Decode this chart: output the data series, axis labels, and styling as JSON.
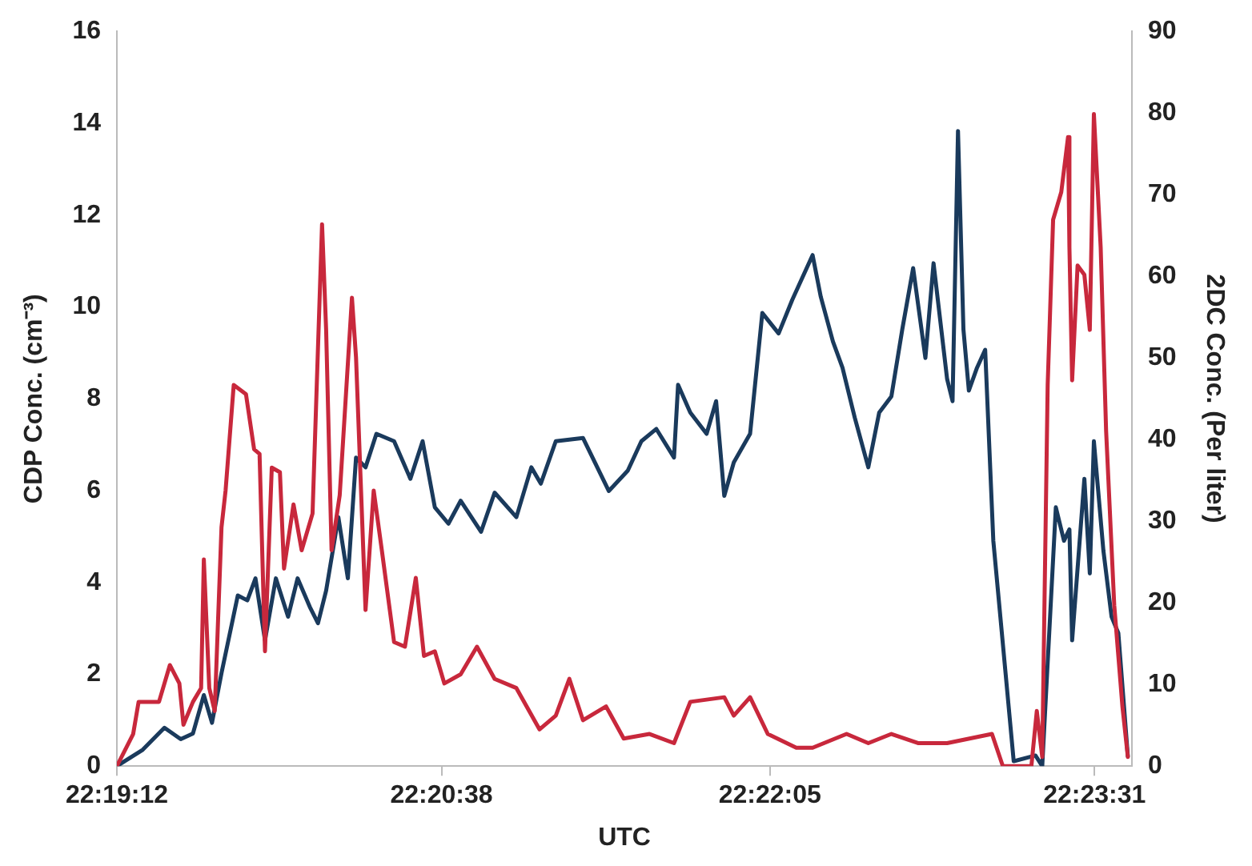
{
  "chart_data": {
    "type": "line",
    "xlabel": "UTC",
    "ylabel": "CDP Conc. (cm⁻³)",
    "y2label": "2DC Conc. (Per liter)",
    "xlim": [
      22.32,
      22.3947
    ],
    "xticks": [
      {
        "value": 22.32,
        "label": "22:19:12"
      },
      {
        "value": 22.343889,
        "label": "22:20:38"
      },
      {
        "value": 22.368056,
        "label": "22:22:05"
      },
      {
        "value": 22.391944,
        "label": "22:23:31"
      }
    ],
    "ylim": [
      0,
      16
    ],
    "yticks": [
      0,
      2,
      4,
      6,
      8,
      10,
      12,
      14,
      16
    ],
    "y2lim": [
      0,
      90
    ],
    "y2ticks": [
      0,
      10,
      20,
      30,
      40,
      50,
      60,
      70,
      80,
      90
    ],
    "grid": false,
    "legend": false,
    "marker": "none",
    "line_style": "solid",
    "series": [
      {
        "color": "#c8283c",
        "x": [
          22.32,
          22.3212,
          22.3216,
          22.3231,
          22.3239,
          22.3246,
          22.3249,
          22.3256,
          22.3262,
          22.3264,
          22.3268,
          22.3272,
          22.3277,
          22.328,
          22.3286,
          22.3295,
          22.3301,
          22.3305,
          22.3309,
          22.3314,
          22.332,
          22.3323,
          22.333,
          22.3336,
          22.3344,
          22.3351,
          22.3354,
          22.3358,
          22.3364,
          22.3373,
          22.3376,
          22.3383,
          22.3389,
          22.3395,
          22.3404,
          22.3412,
          22.342,
          22.3426,
          22.3434,
          22.3441,
          22.3453,
          22.3465,
          22.3478,
          22.3494,
          22.3511,
          22.3523,
          22.3533,
          22.3543,
          22.356,
          22.3573,
          22.3592,
          22.361,
          22.3622,
          22.3647,
          22.3654,
          22.3666,
          22.3679,
          22.37,
          22.3712,
          22.3737,
          22.3753,
          22.377,
          22.379,
          22.3811,
          22.3844,
          22.3852,
          22.3873,
          22.3877,
          22.3881,
          22.3885,
          22.3889,
          22.3895,
          22.39,
          22.3901,
          22.3903,
          22.3907,
          22.3912,
          22.3916,
          22.3919,
          22.3924,
          22.3928,
          22.3934,
          22.394,
          22.3944
        ],
        "values": [
          0,
          0.7,
          1.4,
          1.4,
          2.2,
          1.8,
          0.9,
          1.4,
          1.7,
          4.5,
          1.7,
          1.2,
          5.2,
          6.0,
          8.3,
          8.1,
          6.9,
          6.8,
          2.5,
          6.5,
          6.4,
          4.3,
          5.7,
          4.7,
          5.5,
          11.8,
          9.5,
          4.7,
          5.9,
          10.2,
          8.9,
          3.4,
          6.0,
          4.7,
          2.7,
          2.6,
          4.1,
          2.4,
          2.5,
          1.8,
          2.0,
          2.6,
          1.9,
          1.7,
          0.8,
          1.1,
          1.9,
          1.0,
          1.3,
          0.6,
          0.7,
          0.5,
          1.4,
          1.5,
          1.1,
          1.5,
          0.7,
          0.4,
          0.4,
          0.7,
          0.5,
          0.7,
          0.5,
          0.5,
          0.7,
          0,
          0,
          1.2,
          0.2,
          8.3,
          11.9,
          12.5,
          13.7,
          11.3,
          8.4,
          10.9,
          10.7,
          9.5,
          14.2,
          11.3,
          7.3,
          3.5,
          1.3,
          0.2
        ]
      },
      {
        "color": "#1a3a5c",
        "axis": "y2",
        "x": [
          22.32,
          22.3219,
          22.3235,
          22.3247,
          22.3256,
          22.3264,
          22.327,
          22.3277,
          22.3289,
          22.3296,
          22.3302,
          22.3309,
          22.3317,
          22.3326,
          22.3333,
          22.3342,
          22.3348,
          22.3354,
          22.3363,
          22.337,
          22.3376,
          22.3383,
          22.3391,
          22.3404,
          22.3416,
          22.3425,
          22.3434,
          22.3444,
          22.3453,
          22.3468,
          22.3478,
          22.3494,
          22.3505,
          22.3512,
          22.3523,
          22.3543,
          22.3562,
          22.3576,
          22.3586,
          22.3597,
          22.361,
          22.3613,
          22.3622,
          22.3634,
          22.3641,
          22.3647,
          22.3654,
          22.3666,
          22.3675,
          22.3687,
          22.3697,
          22.3712,
          22.3718,
          22.3727,
          22.3734,
          22.3743,
          22.3753,
          22.3761,
          22.377,
          22.3778,
          22.3786,
          22.3795,
          22.3801,
          22.3811,
          22.3815,
          22.3819,
          22.3823,
          22.3827,
          22.3833,
          22.3839,
          22.3845,
          22.386,
          22.3876,
          22.3881,
          22.3891,
          22.3897,
          22.3901,
          22.3903,
          22.3912,
          22.3916,
          22.3919,
          22.3926,
          22.3932,
          22.3937,
          22.3944
        ],
        "values": [
          0,
          2,
          4.7,
          3.3,
          4,
          8.7,
          5.3,
          11.4,
          20.9,
          20.3,
          23,
          15.4,
          23,
          18.3,
          23,
          19.5,
          17.5,
          21.5,
          30.5,
          23,
          37.8,
          36.6,
          40.7,
          39.8,
          35.2,
          39.8,
          31.7,
          29.7,
          32.5,
          28.7,
          33.5,
          30.5,
          36.6,
          34.6,
          39.8,
          40.2,
          33.7,
          36.2,
          39.8,
          41.3,
          37.8,
          46.7,
          43.3,
          40.7,
          44.7,
          33.1,
          37.2,
          40.7,
          55.5,
          53,
          57.1,
          62.6,
          57.5,
          52,
          48.8,
          42.7,
          36.6,
          43.3,
          45.3,
          53.5,
          61,
          50,
          61.6,
          47.4,
          44.7,
          77.8,
          53.5,
          46,
          48.8,
          51,
          27.6,
          0.6,
          1.3,
          0,
          31.7,
          27.6,
          29,
          15.4,
          35.2,
          23.6,
          39.8,
          26.4,
          18.3,
          16.3,
          1.2
        ]
      }
    ]
  }
}
